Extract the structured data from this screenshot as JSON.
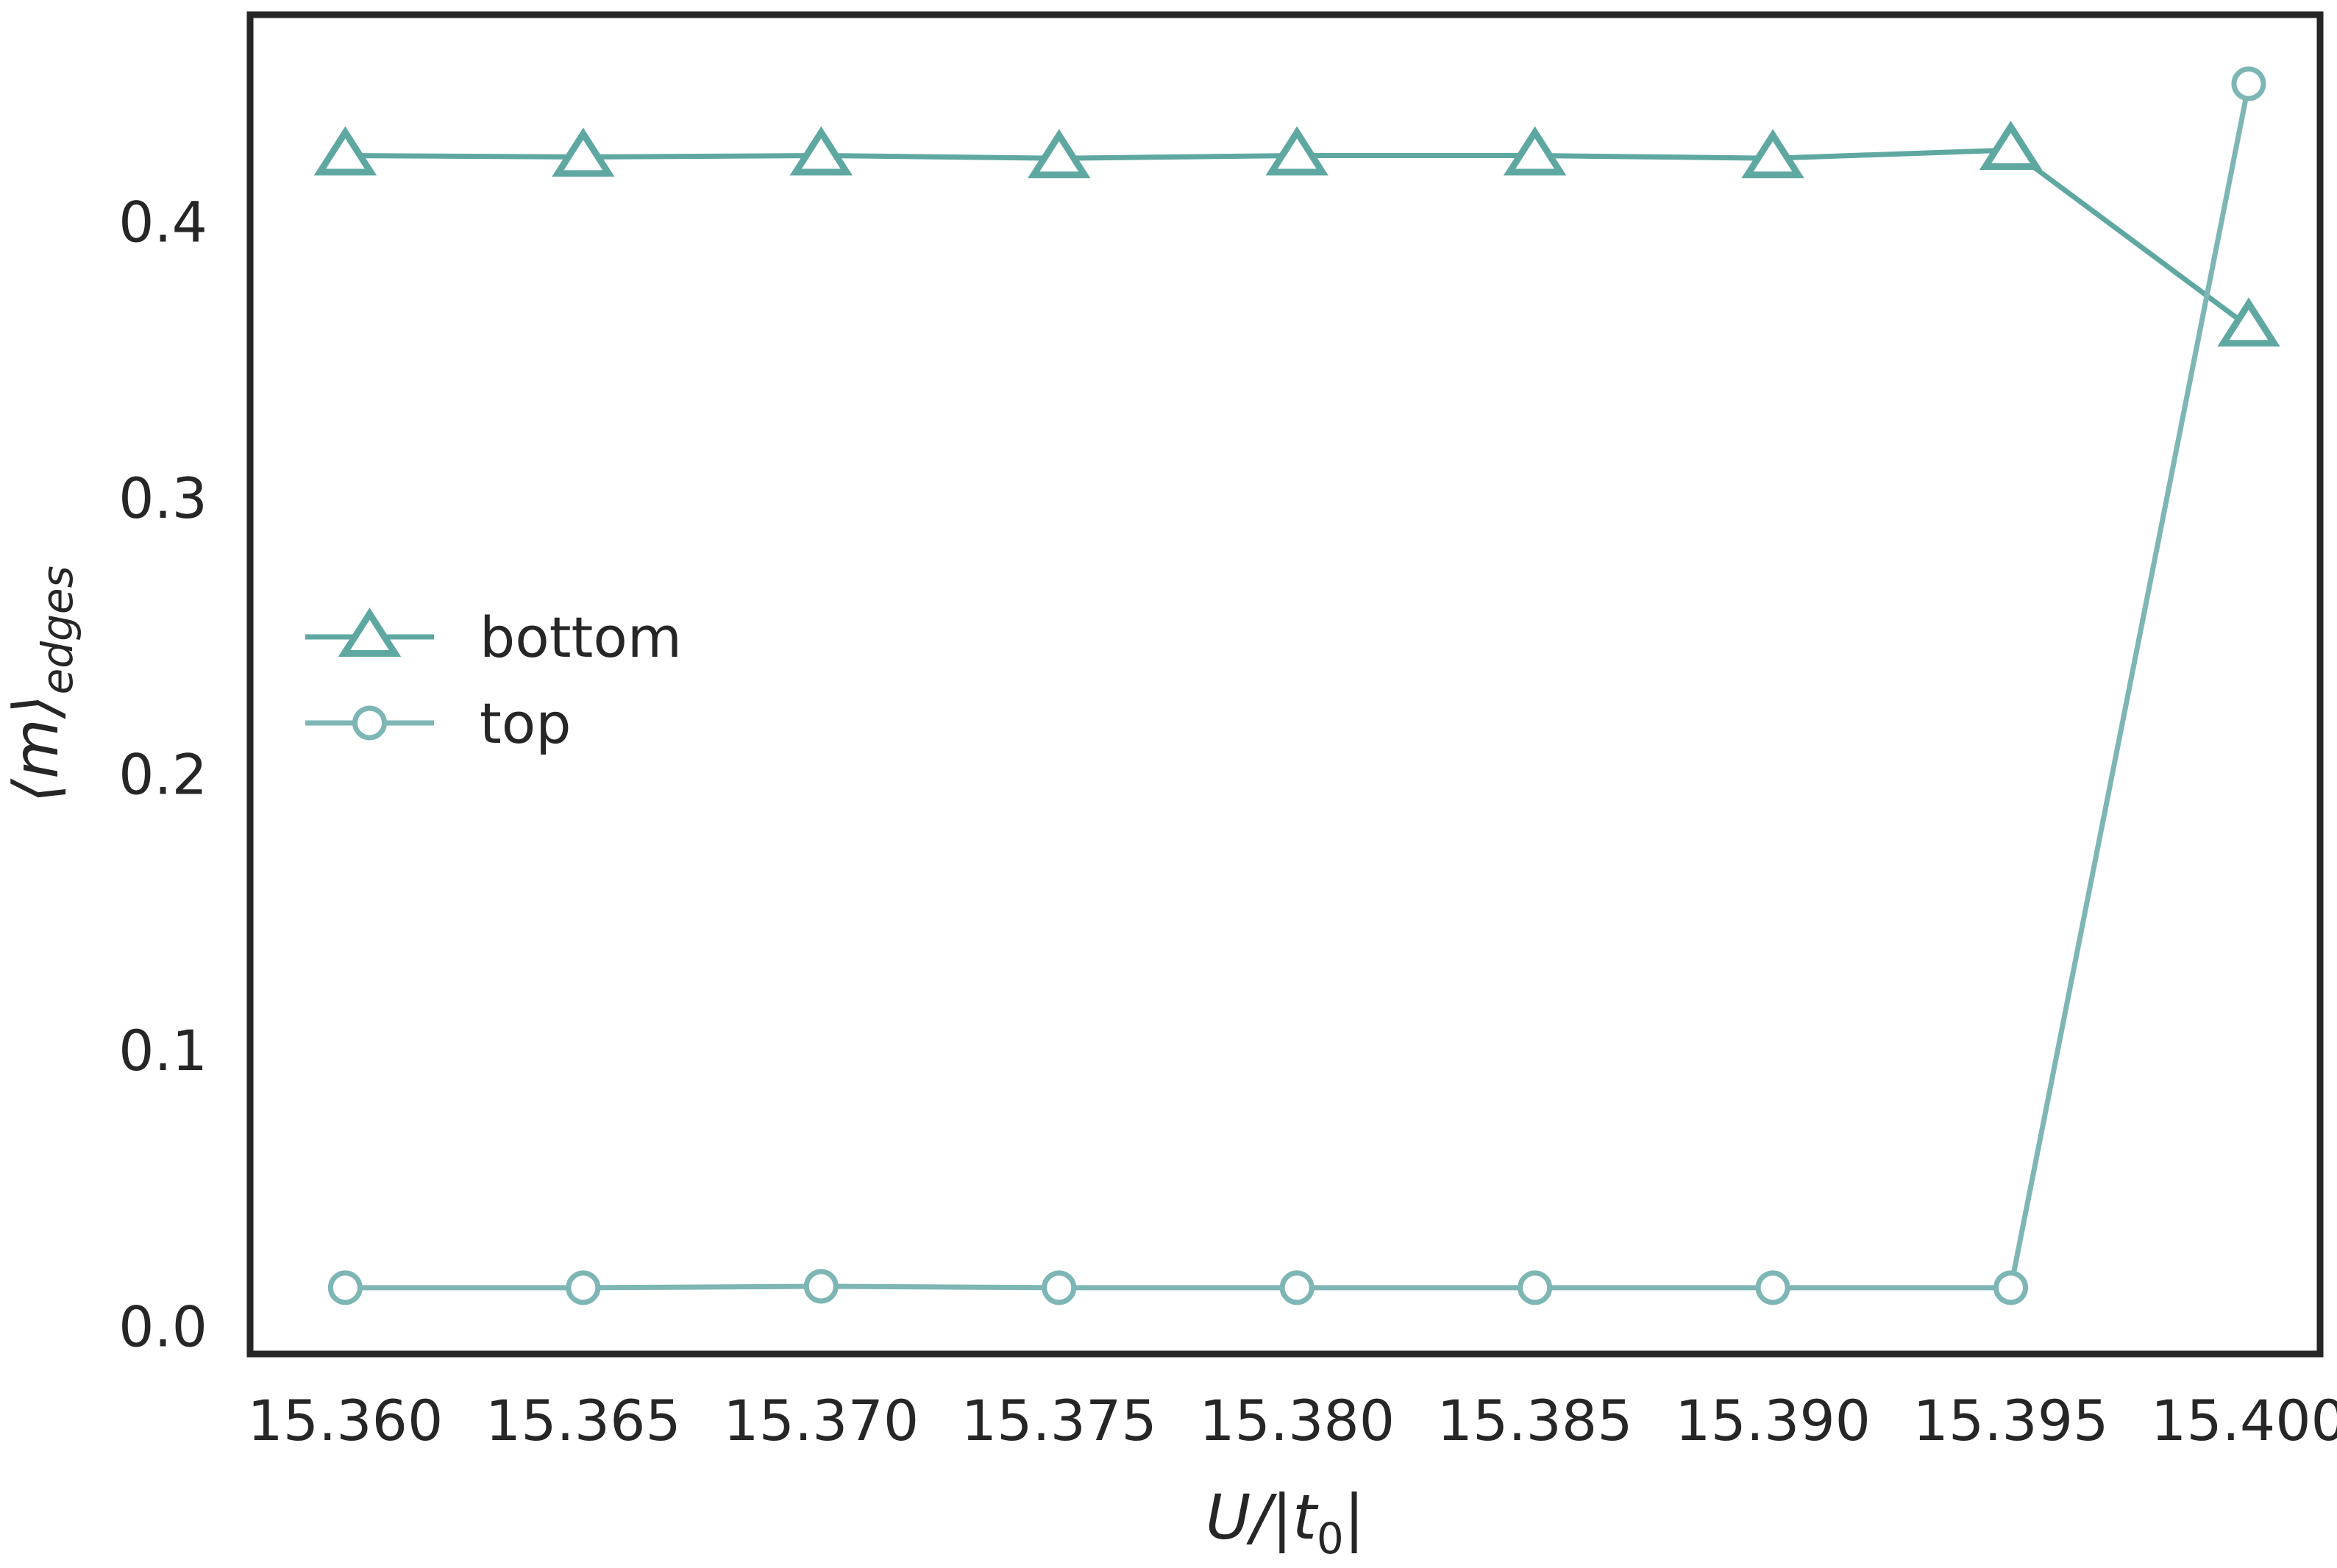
{
  "chart_data": {
    "type": "line",
    "title": "",
    "xlabel": "U/|t0|",
    "xlabel_parts": {
      "main": "U/|t",
      "sub": "0",
      "close": "|"
    },
    "ylabel": "⟨m⟩edges",
    "ylabel_parts": {
      "main": "⟨m⟩",
      "sub": "edges"
    },
    "x": [
      15.36,
      15.365,
      15.37,
      15.375,
      15.38,
      15.385,
      15.39,
      15.395,
      15.4
    ],
    "xticks": [
      15.36,
      15.365,
      15.37,
      15.375,
      15.38,
      15.385,
      15.39,
      15.395,
      15.4
    ],
    "xtick_labels": [
      "15.360",
      "15.365",
      "15.370",
      "15.375",
      "15.380",
      "15.385",
      "15.390",
      "15.395",
      "15.400"
    ],
    "yticks": [
      0.0,
      0.1,
      0.2,
      0.3,
      0.4
    ],
    "ytick_labels": [
      "0.0",
      "0.1",
      "0.2",
      "0.3",
      "0.4"
    ],
    "xlim": [
      15.358,
      15.4015
    ],
    "ylim": [
      -0.01,
      0.475
    ],
    "grid": false,
    "legend_position": "center-left",
    "series": [
      {
        "name": "bottom",
        "marker": "triangle",
        "color": "#5FA8A2",
        "values": [
          0.424,
          0.4235,
          0.424,
          0.423,
          0.424,
          0.424,
          0.423,
          0.426,
          0.362
        ]
      },
      {
        "name": "top",
        "marker": "circle",
        "color": "#7DB6B4",
        "values": [
          0.014,
          0.014,
          0.0145,
          0.014,
          0.014,
          0.014,
          0.014,
          0.014,
          0.45
        ]
      }
    ]
  }
}
